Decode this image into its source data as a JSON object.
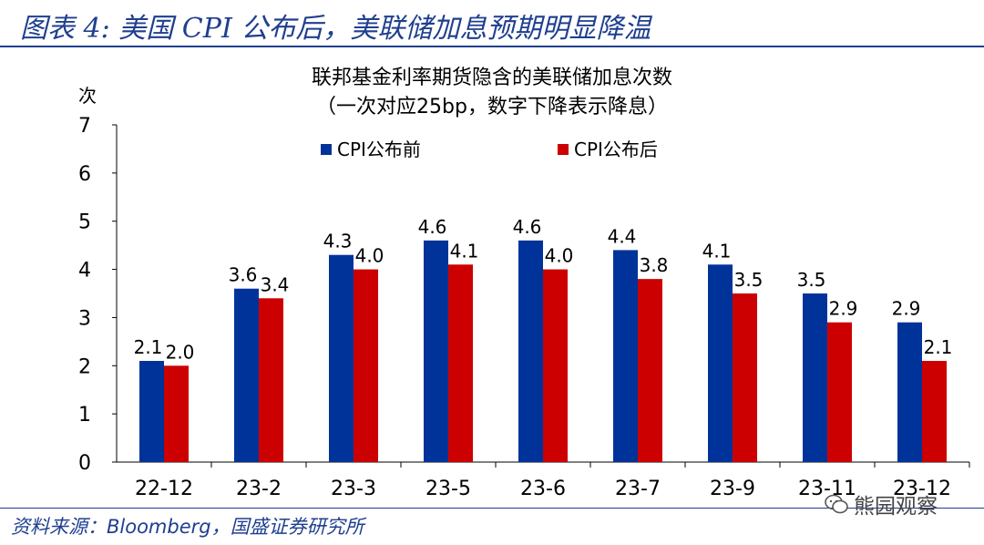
{
  "figure": {
    "title": "图表 4:  美国 CPI 公布后，美联储加息预期明显降温",
    "source": "资料来源：Bloomberg，国盛证券研究所",
    "watermark": "熊园观察",
    "watermark_icon": "wechat-icon"
  },
  "colors": {
    "series_before": "#003399",
    "series_after": "#cc0000",
    "frame": "#1f3f8f"
  },
  "chart_data": {
    "type": "bar",
    "title": "联邦基金利率期货隐含的美联储加息次数",
    "subtitle": "（一次对应25bp，数字下降表示降息）",
    "ylabel": "次",
    "xlabel": "",
    "ylim": [
      0,
      7
    ],
    "yticks": [
      0,
      1,
      2,
      3,
      4,
      5,
      6,
      7
    ],
    "grid": false,
    "legend_position": "top-center",
    "categories": [
      "22-12",
      "23-2",
      "23-3",
      "23-5",
      "23-6",
      "23-7",
      "23-9",
      "23-11",
      "23-12"
    ],
    "series": [
      {
        "name": "CPI公布前",
        "values": [
          2.1,
          3.6,
          4.3,
          4.6,
          4.6,
          4.4,
          4.1,
          3.5,
          2.9
        ],
        "labels": [
          "2.1",
          "3.6",
          "4.3",
          "4.6",
          "4.6",
          "4.4",
          "4.1",
          "3.5",
          "2.9"
        ]
      },
      {
        "name": "CPI公布后",
        "values": [
          2.0,
          3.4,
          4.0,
          4.1,
          4.0,
          3.8,
          3.5,
          2.9,
          2.1
        ],
        "labels": [
          "2.0",
          "3.4",
          "4.0",
          "4.1",
          "4.0",
          "3.8",
          "3.5",
          "2.9",
          "2.1"
        ]
      }
    ]
  }
}
